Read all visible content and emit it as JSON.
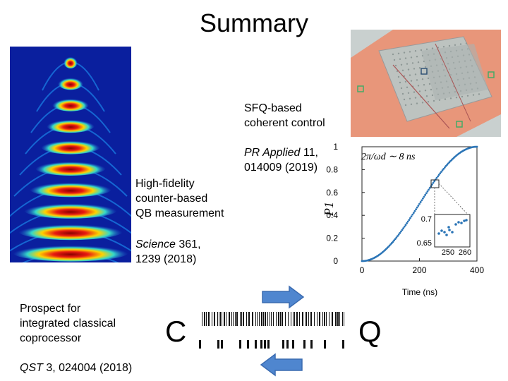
{
  "title": "Summary",
  "sfq": {
    "line1": "SFQ-based",
    "line2": "coherent control",
    "ref_journal": "PR Applied",
    "ref_rest": " 11,",
    "ref_line2": "014009 (2019)"
  },
  "measure": {
    "line1": "High-fidelity",
    "line2": "counter-based",
    "line3": "QB measurement",
    "ref_journal": "Science",
    "ref_rest": " 361,",
    "ref_line2": "1239 (2018)"
  },
  "coproc": {
    "line1": "Prospect for",
    "line2": "integrated classical",
    "line3": "coprocessor",
    "ref_journal": "QST",
    "ref_rest": " 3, 024004 (2018)"
  },
  "classical_label": "C",
  "quantum_label": "Q",
  "colors": {
    "arrow_fill": "#4f86cf",
    "arrow_stroke": "#3a6bb0",
    "chip_bg": "#e8967a",
    "chip_core": "#bdc3c0",
    "plot_series": "#2a74b6"
  },
  "inset_plot": {
    "formula": "2π/ωd ∼ 8 ns",
    "y_axis_label": "P1",
    "x_axis_label": "Time (ns)",
    "x_ticks": [
      "0",
      "200",
      "400"
    ],
    "y_ticks": [
      "0",
      "0.2",
      "0.4",
      "0.6",
      "0.8",
      "1"
    ],
    "zoom_y_ticks": [
      "0.7",
      "0.65"
    ],
    "zoom_x_ticks": [
      "250",
      "260"
    ]
  }
}
